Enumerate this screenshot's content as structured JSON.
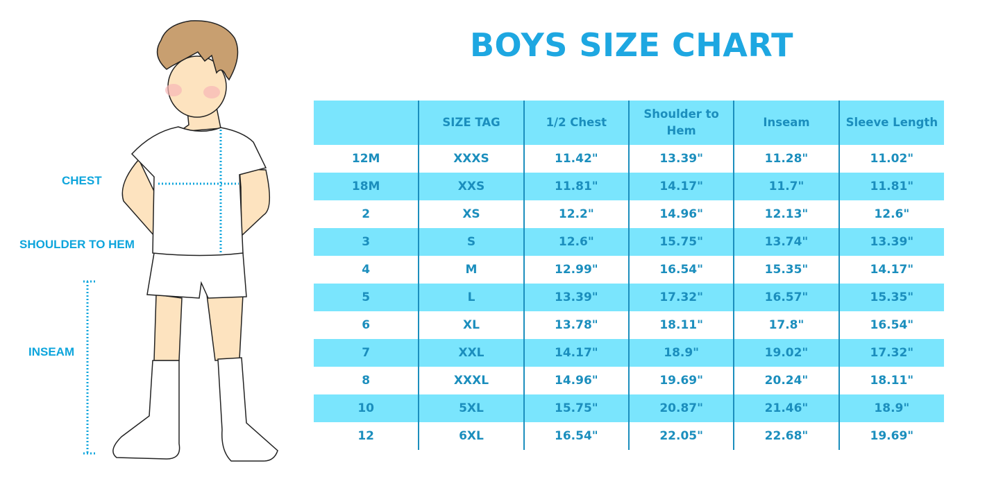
{
  "title": "BOYS SIZE CHART",
  "measurement_labels": {
    "chest": "CHEST",
    "shoulder_to_hem": "SHOULDER TO HEM",
    "inseam": "INSEAM"
  },
  "colors": {
    "title": "#1ea7e1",
    "table_band": "#7ae5fd",
    "table_text": "#1b8ebd",
    "measure_line": "#0ea5dc"
  },
  "chart_data": {
    "type": "table",
    "title": "BOYS SIZE CHART",
    "columns": [
      "",
      "SIZE TAG",
      "1/2 Chest",
      "Shoulder to Hem",
      "Inseam",
      "Sleeve Length"
    ],
    "rows": [
      [
        "12M",
        "XXXS",
        "11.42\"",
        "13.39\"",
        "11.28\"",
        "11.02\""
      ],
      [
        "18M",
        "XXS",
        "11.81\"",
        "14.17\"",
        "11.7\"",
        "11.81\""
      ],
      [
        "2",
        "XS",
        "12.2\"",
        "14.96\"",
        "12.13\"",
        "12.6\""
      ],
      [
        "3",
        "S",
        "12.6\"",
        "15.75\"",
        "13.74\"",
        "13.39\""
      ],
      [
        "4",
        "M",
        "12.99\"",
        "16.54\"",
        "15.35\"",
        "14.17\""
      ],
      [
        "5",
        "L",
        "13.39\"",
        "17.32\"",
        "16.57\"",
        "15.35\""
      ],
      [
        "6",
        "XL",
        "13.78\"",
        "18.11\"",
        "17.8\"",
        "16.54\""
      ],
      [
        "7",
        "XXL",
        "14.17\"",
        "18.9\"",
        "19.02\"",
        "17.32\""
      ],
      [
        "8",
        "XXXL",
        "14.96\"",
        "19.69\"",
        "20.24\"",
        "18.11\""
      ],
      [
        "10",
        "5XL",
        "15.75\"",
        "20.87\"",
        "21.46\"",
        "18.9\""
      ],
      [
        "12",
        "6XL",
        "16.54\"",
        "22.05\"",
        "22.68\"",
        "19.69\""
      ]
    ]
  }
}
